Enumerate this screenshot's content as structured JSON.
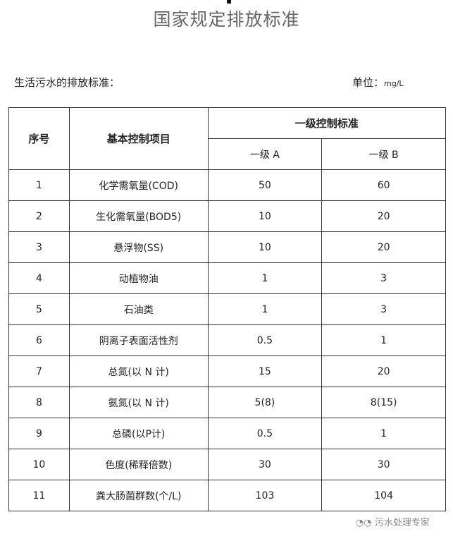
{
  "title": "国家规定排放标准",
  "subtitle": "生活污水的排放标准：",
  "unit_label": "单位：",
  "unit_value": "mg/L",
  "table": {
    "headers": {
      "no": "序号",
      "item": "基本控制项目",
      "group": "一级控制标准",
      "a": "一级 A",
      "b": "一级 B"
    },
    "rows": [
      {
        "no": "1",
        "item": "化学需氧量(COD)",
        "a": "50",
        "b": "60"
      },
      {
        "no": "2",
        "item": "生化需氧量(BOD5)",
        "a": "10",
        "b": "20"
      },
      {
        "no": "3",
        "item": "悬浮物(SS)",
        "a": "10",
        "b": "20"
      },
      {
        "no": "4",
        "item": "动植物油",
        "a": "1",
        "b": "3"
      },
      {
        "no": "5",
        "item": "石油类",
        "a": "1",
        "b": "3"
      },
      {
        "no": "6",
        "item": "阴离子表面活性剂",
        "a": "0.5",
        "b": "1"
      },
      {
        "no": "7",
        "item": "总氮(以 N 计)",
        "a": "15",
        "b": "20"
      },
      {
        "no": "8",
        "item": "氨氮(以 N 计)",
        "a": "5(8)",
        "b": "8(15)"
      },
      {
        "no": "9",
        "item": "总磷(以P计)",
        "a": "0.5",
        "b": "1"
      },
      {
        "no": "10",
        "item": "色度(稀释倍数)",
        "a": "30",
        "b": "30"
      },
      {
        "no": "11",
        "item": "粪大肠菌群数(个/L)",
        "a": "103",
        "b": "104"
      }
    ]
  },
  "watermark": "污水处理专家"
}
